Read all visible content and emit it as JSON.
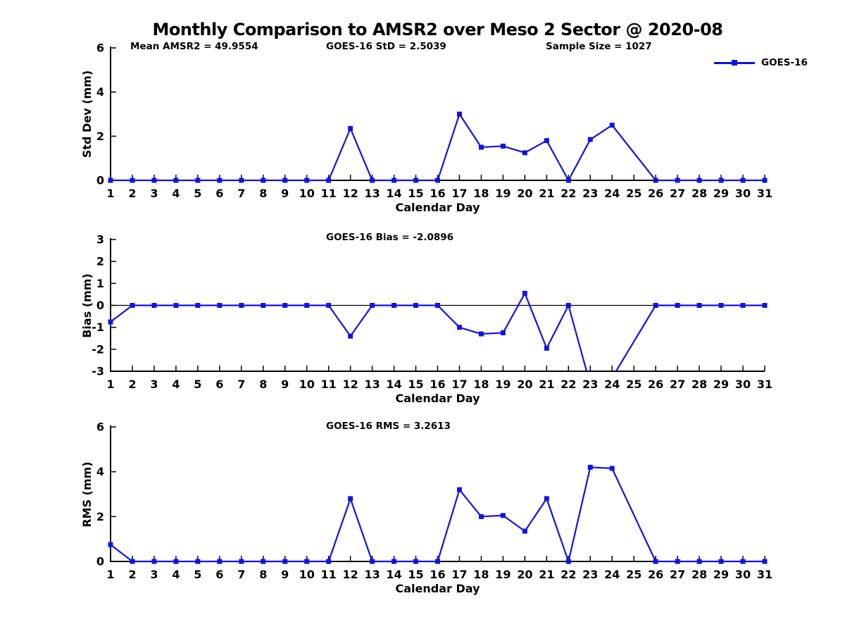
{
  "title": "Monthly Comparison to AMSR2 over Meso 2 Sector @ 2020-08",
  "legend": {
    "label": "GOES-16"
  },
  "colors": {
    "line": "#1212e0",
    "axis": "#000000",
    "text": "#000000",
    "background": "#ffffff"
  },
  "xlim": [
    1,
    31
  ],
  "x_ticks": [
    1,
    2,
    3,
    4,
    5,
    6,
    7,
    8,
    9,
    10,
    11,
    12,
    13,
    14,
    15,
    16,
    17,
    18,
    19,
    20,
    21,
    22,
    23,
    24,
    25,
    26,
    27,
    28,
    29,
    30,
    31
  ],
  "chart_data": [
    {
      "type": "line",
      "id": "std_dev",
      "series": "GOES-16",
      "ylabel": "Std Dev (mm)",
      "xlabel": "Calendar Day",
      "ylim": [
        0,
        6
      ],
      "yticks": [
        0,
        2,
        4,
        6
      ],
      "annotations": [
        {
          "text": "Mean AMSR2 = 49.9554"
        },
        {
          "text": "GOES-16 StD = 2.5039"
        },
        {
          "text": "Sample Size = 1027"
        }
      ],
      "x": [
        1,
        2,
        3,
        4,
        5,
        6,
        7,
        8,
        9,
        10,
        11,
        12,
        13,
        14,
        15,
        16,
        17,
        18,
        19,
        20,
        21,
        22,
        23,
        24,
        26,
        27,
        28,
        29,
        30,
        31
      ],
      "y": [
        0,
        0,
        0,
        0,
        0,
        0,
        0,
        0,
        0,
        0,
        0,
        2.35,
        0,
        0,
        0,
        0,
        3.0,
        1.5,
        1.55,
        1.25,
        1.8,
        0,
        1.85,
        2.5,
        0,
        0,
        0,
        0,
        0,
        0
      ]
    },
    {
      "type": "line",
      "id": "bias",
      "series": "GOES-16",
      "ylabel": "Bias (mm)",
      "xlabel": "Calendar Day",
      "ylim": [
        -3,
        3
      ],
      "yticks": [
        -3,
        -2,
        -1,
        0,
        1,
        2,
        3
      ],
      "zero_line": true,
      "annotations": [
        {
          "text": "GOES-16 Bias = -2.0896"
        }
      ],
      "x": [
        1,
        2,
        3,
        4,
        5,
        6,
        7,
        8,
        9,
        10,
        11,
        12,
        13,
        14,
        15,
        16,
        17,
        18,
        19,
        20,
        21,
        22,
        23,
        24,
        26,
        27,
        28,
        29,
        30,
        31
      ],
      "y": [
        -0.75,
        0,
        0,
        0,
        0,
        0,
        0,
        0,
        0,
        0,
        0,
        -1.4,
        0,
        0,
        0,
        0,
        -1.0,
        -1.3,
        -1.25,
        0.55,
        -1.95,
        0,
        -3.6,
        -3.3,
        0,
        0,
        0,
        0,
        0,
        0
      ]
    },
    {
      "type": "line",
      "id": "rms",
      "series": "GOES-16",
      "ylabel": "RMS (mm)",
      "xlabel": "Calendar Day",
      "ylim": [
        0,
        6
      ],
      "yticks": [
        0,
        2,
        4,
        6
      ],
      "annotations": [
        {
          "text": "GOES-16 RMS = 3.2613"
        }
      ],
      "x": [
        1,
        2,
        3,
        4,
        5,
        6,
        7,
        8,
        9,
        10,
        11,
        12,
        13,
        14,
        15,
        16,
        17,
        18,
        19,
        20,
        21,
        22,
        23,
        24,
        26,
        27,
        28,
        29,
        30,
        31
      ],
      "y": [
        0.75,
        0,
        0,
        0,
        0,
        0,
        0,
        0,
        0,
        0,
        0,
        2.8,
        0,
        0,
        0,
        0,
        3.2,
        2.0,
        2.05,
        1.35,
        2.8,
        0,
        4.2,
        4.15,
        0,
        0,
        0,
        0,
        0,
        0
      ]
    }
  ]
}
